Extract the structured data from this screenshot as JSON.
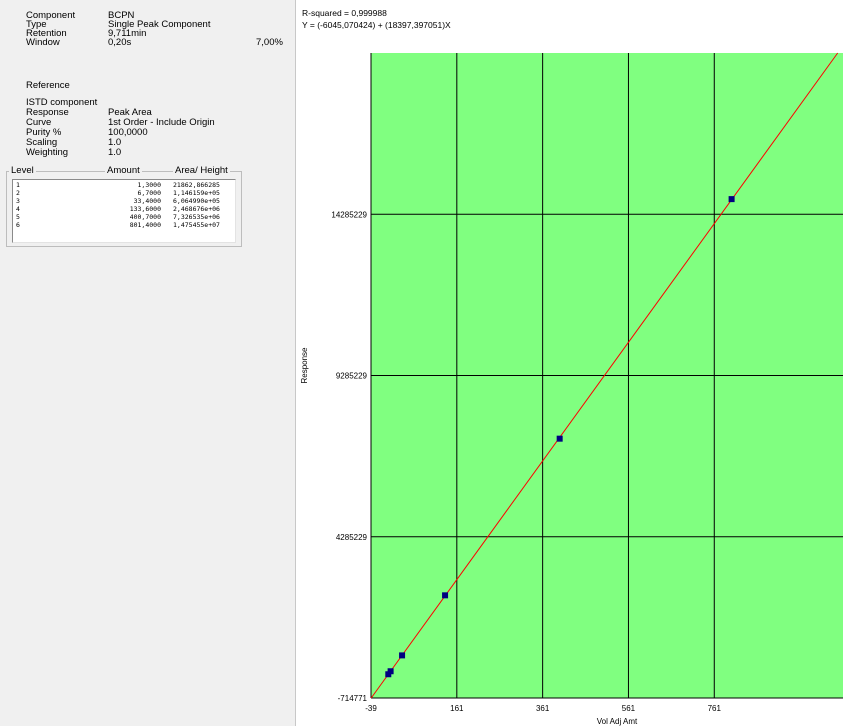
{
  "properties": [
    {
      "label": "Component",
      "value": "BCPN"
    },
    {
      "label": "Type",
      "value": "Single Peak Component"
    },
    {
      "label": "Retention",
      "value": "9,711min"
    },
    {
      "label": "Window",
      "value": "0,20s"
    }
  ],
  "window_percent": "7,00%",
  "reference_label": "Reference",
  "settings": [
    {
      "label": "ISTD component",
      "value": ""
    },
    {
      "label": "Response",
      "value": "Peak Area"
    },
    {
      "label": "Curve",
      "value": "1st Order - Include Origin"
    },
    {
      "label": "Purity %",
      "value": "100,0000"
    },
    {
      "label": "Scaling",
      "value": "1.0"
    },
    {
      "label": "Weighting",
      "value": "1.0"
    }
  ],
  "level_table": {
    "headers": {
      "level": "Level",
      "amount": "Amount",
      "area": "Area/ Height"
    },
    "rows": [
      {
        "level": "1",
        "amount": "1,3000",
        "area": "21862,866285"
      },
      {
        "level": "2",
        "amount": "6,7000",
        "area": "1,146159e+05"
      },
      {
        "level": "3",
        "amount": "33,4000",
        "area": "6,064990e+05"
      },
      {
        "level": "4",
        "amount": "133,6000",
        "area": "2,468676e+06"
      },
      {
        "level": "5",
        "amount": "400,7000",
        "area": "7,326535e+06"
      },
      {
        "level": "6",
        "amount": "801,4000",
        "area": "1,475455e+07"
      }
    ]
  },
  "chart_data": {
    "type": "scatter",
    "r_squared": "R-squared = 0,999988",
    "equation": "Y = (-6045,070424) + (18397,397051)X",
    "xlabel": "Vol Adj Amt",
    "ylabel": "Response",
    "x_ticks": [
      "-39",
      "161",
      "361",
      "561",
      "761"
    ],
    "y_ticks": [
      "-714771",
      "4285229",
      "9285229",
      "14285229"
    ],
    "xlim": [
      -39,
      1061
    ],
    "ylim": [
      -714771,
      19285229
    ],
    "grid": true,
    "points": [
      {
        "x": 1.3,
        "y": 21862.866285
      },
      {
        "x": 6.7,
        "y": 114615.9
      },
      {
        "x": 33.4,
        "y": 606499.0
      },
      {
        "x": 133.6,
        "y": 2468676
      },
      {
        "x": 400.7,
        "y": 7326535
      },
      {
        "x": 801.4,
        "y": 14754550
      }
    ],
    "fit": {
      "intercept": -6045.070424,
      "slope": 18397.397051
    },
    "colors": {
      "plot_bg": "#80ff80",
      "grid": "#000000",
      "fit_line": "#ff0000",
      "marker": "#000080"
    }
  }
}
